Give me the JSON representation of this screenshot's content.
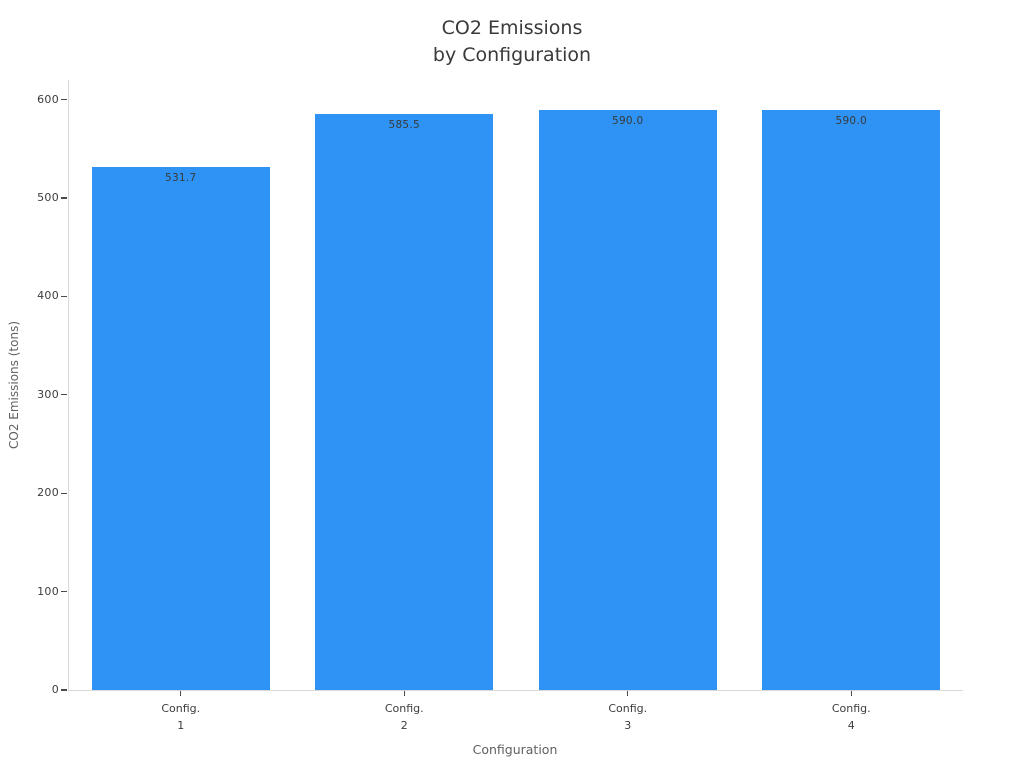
{
  "chart_data": {
    "type": "bar",
    "title_lines": [
      "CO2 Emissions",
      "by Configuration"
    ],
    "xlabel": "Configuration",
    "ylabel": "CO2 Emissions (tons)",
    "categories": [
      [
        "Config.",
        "1"
      ],
      [
        "Config.",
        "2"
      ],
      [
        "Config.",
        "3"
      ],
      [
        "Config.",
        "4"
      ]
    ],
    "values": [
      531.7,
      585.5,
      590.0,
      590.0
    ],
    "value_labels": [
      "531.7",
      "585.5",
      "590.0",
      "590.0"
    ],
    "yticks": [
      0,
      100,
      200,
      300,
      400,
      500,
      600
    ],
    "ylim": [
      0,
      620
    ],
    "grid": false,
    "legend": null,
    "colors": {
      "bar": "#2E93F5",
      "title_text": "#3a3a3a",
      "tick_text": "#3d3d3d",
      "axis_label_text": "#616161",
      "value_label_text": "#3a3a3a",
      "spine": "#d9d9d9",
      "tick_mark": "#4a4a4a",
      "background": "#ffffff"
    }
  }
}
